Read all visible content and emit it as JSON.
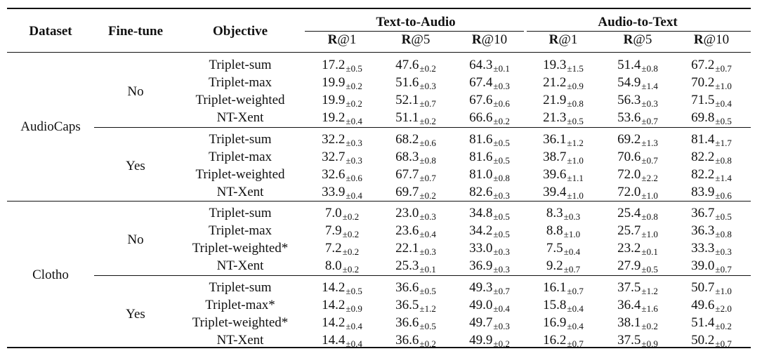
{
  "header": {
    "dataset": "Dataset",
    "finetune": "Fine-tune",
    "objective": "Objective",
    "group_t2a": "Text-to-Audio",
    "group_a2t": "Audio-to-Text",
    "metrics": [
      {
        "prefix": "R",
        "suffix": "@1"
      },
      {
        "prefix": "R",
        "suffix": "@5"
      },
      {
        "prefix": "R",
        "suffix": "@10"
      },
      {
        "prefix": "R",
        "suffix": "@1"
      },
      {
        "prefix": "R",
        "suffix": "@5"
      },
      {
        "prefix": "R",
        "suffix": "@10"
      }
    ]
  },
  "blocks": [
    {
      "dataset": "AudioCaps",
      "groups": [
        {
          "finetune": "No",
          "rows": [
            {
              "objective": "Triplet-sum",
              "cells": [
                [
                  "17.2",
                  "±0.5"
                ],
                [
                  "47.6",
                  "±0.2"
                ],
                [
                  "64.3",
                  "±0.1"
                ],
                [
                  "19.3",
                  "±1.5"
                ],
                [
                  "51.4",
                  "±0.8"
                ],
                [
                  "67.2",
                  "±0.7"
                ]
              ]
            },
            {
              "objective": "Triplet-max",
              "cells": [
                [
                  "19.9",
                  "±0.2"
                ],
                [
                  "51.6",
                  "±0.3"
                ],
                [
                  "67.4",
                  "±0.3"
                ],
                [
                  "21.2",
                  "±0.9"
                ],
                [
                  "54.9",
                  "±1.4"
                ],
                [
                  "70.2",
                  "±1.0"
                ]
              ]
            },
            {
              "objective": "Triplet-weighted",
              "cells": [
                [
                  "19.9",
                  "±0.2"
                ],
                [
                  "52.1",
                  "±0.7"
                ],
                [
                  "67.6",
                  "±0.6"
                ],
                [
                  "21.9",
                  "±0.8"
                ],
                [
                  "56.3",
                  "±0.3"
                ],
                [
                  "71.5",
                  "±0.4"
                ]
              ]
            },
            {
              "objective": "NT-Xent",
              "cells": [
                [
                  "19.2",
                  "±0.4"
                ],
                [
                  "51.1",
                  "±0.2"
                ],
                [
                  "66.6",
                  "±0.2"
                ],
                [
                  "21.3",
                  "±0.5"
                ],
                [
                  "53.6",
                  "±0.7"
                ],
                [
                  "69.8",
                  "±0.5"
                ]
              ]
            }
          ]
        },
        {
          "finetune": "Yes",
          "rows": [
            {
              "objective": "Triplet-sum",
              "cells": [
                [
                  "32.2",
                  "±0.3"
                ],
                [
                  "68.2",
                  "±0.6"
                ],
                [
                  "81.6",
                  "±0.5"
                ],
                [
                  "36.1",
                  "±1.2"
                ],
                [
                  "69.2",
                  "±1.3"
                ],
                [
                  "81.4",
                  "±1.7"
                ]
              ]
            },
            {
              "objective": "Triplet-max",
              "cells": [
                [
                  "32.7",
                  "±0.3"
                ],
                [
                  "68.3",
                  "±0.8"
                ],
                [
                  "81.6",
                  "±0.5"
                ],
                [
                  "38.7",
                  "±1.0"
                ],
                [
                  "70.6",
                  "±0.7"
                ],
                [
                  "82.2",
                  "±0.8"
                ]
              ]
            },
            {
              "objective": "Triplet-weighted",
              "cells": [
                [
                  "32.6",
                  "±0.6"
                ],
                [
                  "67.7",
                  "±0.7"
                ],
                [
                  "81.0",
                  "±0.8"
                ],
                [
                  "39.6",
                  "±1.1"
                ],
                [
                  "72.0",
                  "±2.2"
                ],
                [
                  "82.2",
                  "±1.4"
                ]
              ]
            },
            {
              "objective": "NT-Xent",
              "cells": [
                [
                  "33.9",
                  "±0.4"
                ],
                [
                  "69.7",
                  "±0.2"
                ],
                [
                  "82.6",
                  "±0.3"
                ],
                [
                  "39.4",
                  "±1.0"
                ],
                [
                  "72.0",
                  "±1.0"
                ],
                [
                  "83.9",
                  "±0.6"
                ]
              ]
            }
          ]
        }
      ]
    },
    {
      "dataset": "Clotho",
      "groups": [
        {
          "finetune": "No",
          "rows": [
            {
              "objective": "Triplet-sum",
              "cells": [
                [
                  "7.0",
                  "±0.2"
                ],
                [
                  "23.0",
                  "±0.3"
                ],
                [
                  "34.8",
                  "±0.5"
                ],
                [
                  "8.3",
                  "±0.3"
                ],
                [
                  "25.4",
                  "±0.8"
                ],
                [
                  "36.7",
                  "±0.5"
                ]
              ]
            },
            {
              "objective": "Triplet-max",
              "cells": [
                [
                  "7.9",
                  "±0.2"
                ],
                [
                  "23.6",
                  "±0.4"
                ],
                [
                  "34.2",
                  "±0.5"
                ],
                [
                  "8.8",
                  "±1.0"
                ],
                [
                  "25.7",
                  "±1.0"
                ],
                [
                  "36.3",
                  "±0.8"
                ]
              ]
            },
            {
              "objective": "Triplet-weighted*",
              "cells": [
                [
                  "7.2",
                  "±0.2"
                ],
                [
                  "22.1",
                  "±0.3"
                ],
                [
                  "33.0",
                  "±0.3"
                ],
                [
                  "7.5",
                  "±0.4"
                ],
                [
                  "23.2",
                  "±0.1"
                ],
                [
                  "33.3",
                  "±0.3"
                ]
              ]
            },
            {
              "objective": "NT-Xent",
              "cells": [
                [
                  "8.0",
                  "±0.2"
                ],
                [
                  "25.3",
                  "±0.1"
                ],
                [
                  "36.9",
                  "±0.3"
                ],
                [
                  "9.2",
                  "±0.7"
                ],
                [
                  "27.9",
                  "±0.5"
                ],
                [
                  "39.0",
                  "±0.7"
                ]
              ]
            }
          ]
        },
        {
          "finetune": "Yes",
          "rows": [
            {
              "objective": "Triplet-sum",
              "cells": [
                [
                  "14.2",
                  "±0.5"
                ],
                [
                  "36.6",
                  "±0.5"
                ],
                [
                  "49.3",
                  "±0.7"
                ],
                [
                  "16.1",
                  "±0.7"
                ],
                [
                  "37.5",
                  "±1.2"
                ],
                [
                  "50.7",
                  "±1.0"
                ]
              ]
            },
            {
              "objective": "Triplet-max*",
              "cells": [
                [
                  "14.2",
                  "±0.9"
                ],
                [
                  "36.5",
                  "±1.2"
                ],
                [
                  "49.0",
                  "±0.4"
                ],
                [
                  "15.8",
                  "±0.4"
                ],
                [
                  "36.4",
                  "±1.6"
                ],
                [
                  "49.6",
                  "±2.0"
                ]
              ]
            },
            {
              "objective": "Triplet-weighted*",
              "cells": [
                [
                  "14.2",
                  "±0.4"
                ],
                [
                  "36.6",
                  "±0.5"
                ],
                [
                  "49.7",
                  "±0.3"
                ],
                [
                  "16.9",
                  "±0.4"
                ],
                [
                  "38.1",
                  "±0.2"
                ],
                [
                  "51.4",
                  "±0.2"
                ]
              ]
            },
            {
              "objective": "NT-Xent",
              "cells": [
                [
                  "14.4",
                  "±0.4"
                ],
                [
                  "36.6",
                  "±0.2"
                ],
                [
                  "49.9",
                  "±0.2"
                ],
                [
                  "16.2",
                  "±0.7"
                ],
                [
                  "37.5",
                  "±0.9"
                ],
                [
                  "50.2",
                  "±0.7"
                ]
              ]
            }
          ]
        }
      ]
    }
  ]
}
